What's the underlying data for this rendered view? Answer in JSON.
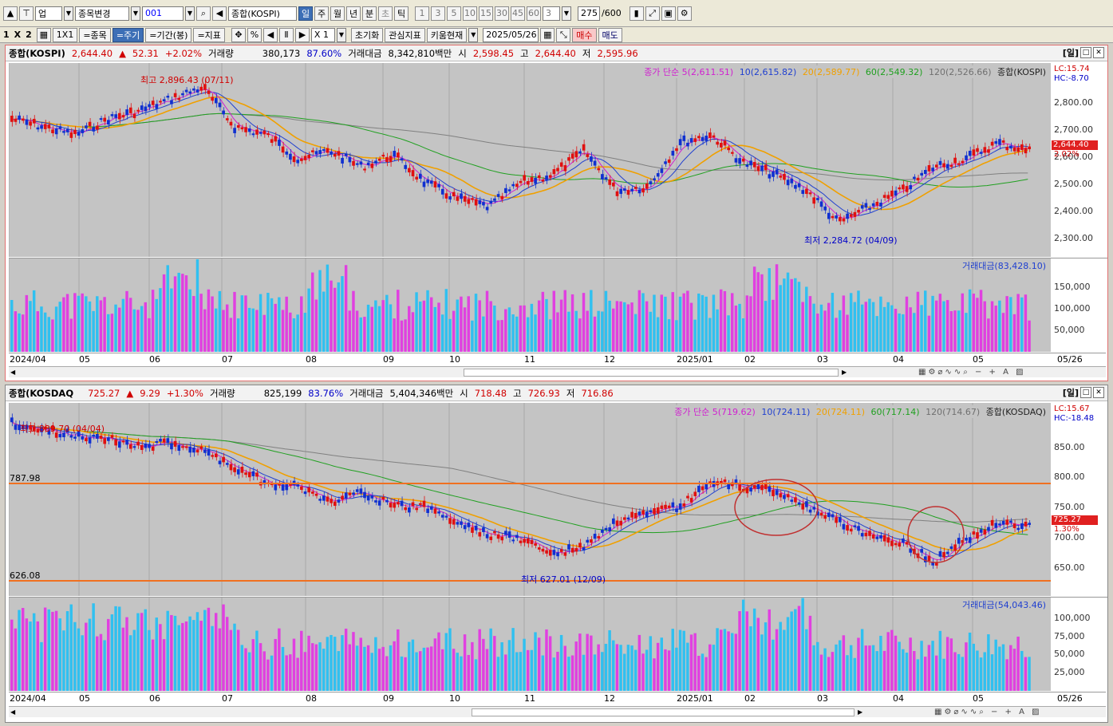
{
  "toolbar1": {
    "box1": "업",
    "box2": "종목변경",
    "code": "001",
    "index_name": "종합(KOSPI)",
    "periods": [
      "일",
      "주",
      "월",
      "년",
      "분",
      "초",
      "틱"
    ],
    "numbers": [
      "1",
      "3",
      "5",
      "10",
      "15",
      "30",
      "45",
      "60"
    ],
    "count_sel": "3",
    "count": "275",
    "count_total": "/600"
  },
  "toolbar2": {
    "layout": [
      "1",
      "X",
      "2"
    ],
    "grid": "1X1",
    "b_stock": "=종목",
    "b_period": "=주기",
    "b_range": "=기간(봉)",
    "b_indicator": "=지표",
    "percent": "%",
    "zoom": "X 1",
    "reset": "초기화",
    "watch": "관심지표",
    "kiwoom": "키움현재",
    "date": "2025/05/26",
    "buy": "매수",
    "sell": "매도"
  },
  "kospi": {
    "name": "종합(KOSPI)",
    "price": "2,644.40",
    "arrow": "▲",
    "change": "52.31",
    "change_pct": "+2.02%",
    "vol_label": "거래량",
    "volume": "380,173",
    "vol_ratio": "87.60%",
    "amt_label": "거래대금",
    "amount": "8,342,810백만",
    "open_label": "시",
    "open": "2,598.45",
    "high_label": "고",
    "high": "2,644.40",
    "low_label": "저",
    "low": "2,595.96",
    "period_tag": "[일]",
    "ma_legend": {
      "prefix": "종가 단순 5(2,611.51)",
      "ma10": "10(2,615.82)",
      "ma20": "20(2,589.77)",
      "ma60": "60(2,549.32)",
      "ma120": "120(2,526.66)",
      "name": "종합(KOSPI)"
    },
    "lc": "LC:15.74",
    "hc": "HC:-8.70",
    "price_tag": "2,644.40",
    "pct_tag": "2.02%",
    "y_ticks": [
      "2,800.00",
      "2,700.00",
      "2,600.00",
      "2,500.00",
      "2,400.00",
      "2,300.00"
    ],
    "max_anno": "최고 2,896.43 (07/11)",
    "min_anno": "최저 2,284.72 (04/09)",
    "vol_legend": "거래대금(83,428.10)",
    "vol_ticks": [
      "150,000",
      "100,000",
      "50,000"
    ]
  },
  "kosdaq": {
    "name": "종합(KOSDAQ",
    "price": "725.27",
    "arrow": "▲",
    "change": "9.29",
    "change_pct": "+1.30%",
    "vol_label": "거래량",
    "volume": "825,199",
    "vol_ratio": "83.76%",
    "amt_label": "거래대금",
    "amount": "5,404,346백만",
    "open_label": "시",
    "open": "718.48",
    "high_label": "고",
    "high": "726.93",
    "low_label": "저",
    "low": "716.86",
    "period_tag": "[일]",
    "ma_legend": {
      "prefix": "종가 단순 5(719.62)",
      "ma10": "10(724.11)",
      "ma20": "20(724.11)",
      "ma60": "60(717.14)",
      "ma120": "120(714.67)",
      "name": "종합(KOSDAQ)"
    },
    "lc": "LC:15.67",
    "hc": "HC:-18.48",
    "price_tag": "725.27",
    "pct_tag": "1.30%",
    "y_ticks": [
      "850.00",
      "800.00",
      "750.00",
      "700.00",
      "650.00"
    ],
    "max_anno": "최고 889.70 (04/04)",
    "min_anno": "최저 627.01 (12/09)",
    "line1": "787.98",
    "line2": "626.08",
    "vol_legend": "거래대금(54,043.46)",
    "vol_ticks": [
      "100,000",
      "75,000",
      "50,000",
      "25,000"
    ]
  },
  "dates": [
    "2024/04",
    "05",
    "06",
    "07",
    "08",
    "09",
    "10",
    "11",
    "12",
    "2025/01",
    "02",
    "03",
    "04",
    "05"
  ],
  "last_date": "05/26",
  "colors": {
    "up": "#e01010",
    "down": "#1030d0",
    "ma5": "#d020d0",
    "ma10": "#2040d0",
    "ma20": "#f0a000",
    "ma60": "#20a020",
    "ma120": "#808080",
    "vol_a": "#30c0f0",
    "vol_b": "#e040e0"
  }
}
